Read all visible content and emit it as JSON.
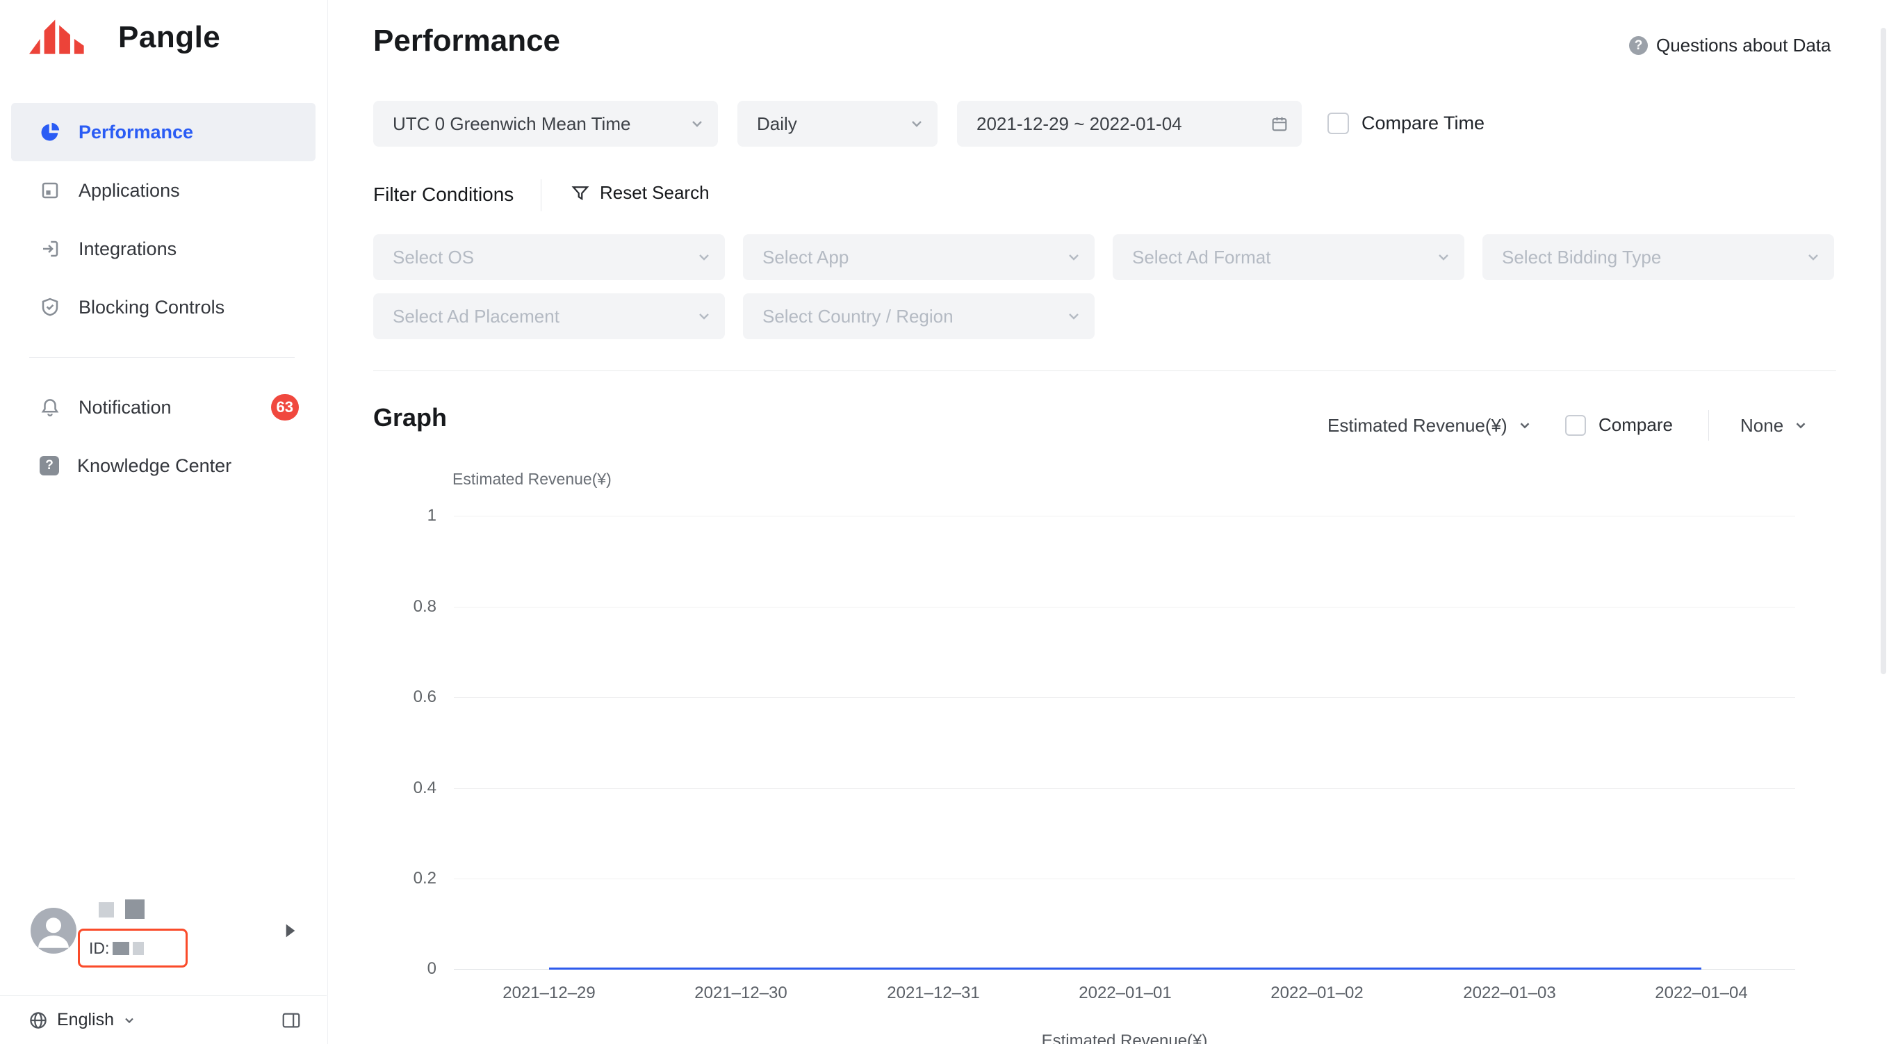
{
  "brand": {
    "name": "Pangle"
  },
  "colors": {
    "accent": "#2a5cf4",
    "badge": "#f0483e",
    "highlight_box": "#fa4b2a",
    "chart_line": "#2e5bec"
  },
  "icons": {
    "question_glyph": "?"
  },
  "sidebar": {
    "items": [
      {
        "label": "Performance",
        "active": true
      },
      {
        "label": "Applications",
        "active": false
      },
      {
        "label": "Integrations",
        "active": false
      },
      {
        "label": "Blocking Controls",
        "active": false
      },
      {
        "label": "Notification",
        "active": false,
        "badge": "63"
      },
      {
        "label": "Knowledge Center",
        "active": false
      }
    ],
    "user": {
      "id_label": "ID:"
    },
    "language": "English"
  },
  "header": {
    "title": "Performance",
    "help_label": "Questions about Data"
  },
  "filters": {
    "timezone": "UTC 0 Greenwich Mean Time",
    "granularity": "Daily",
    "date_range": "2021-12-29 ~ 2022-01-04",
    "compare_time_label": "Compare Time",
    "conditions_label": "Filter Conditions",
    "reset_label": "Reset Search",
    "placeholders": {
      "os": "Select OS",
      "app": "Select App",
      "ad_format": "Select Ad Format",
      "bidding_type": "Select Bidding Type",
      "ad_placement": "Select Ad Placement",
      "country": "Select Country / Region"
    }
  },
  "graph": {
    "section_title": "Graph",
    "metric": "Estimated Revenue(¥)",
    "compare_label": "Compare",
    "secondary_metric": "None"
  },
  "chart_data": {
    "type": "line",
    "title": "Estimated Revenue(¥)",
    "ylabel": "Estimated Revenue(¥)",
    "x": [
      "2021–12–29",
      "2021–12–30",
      "2021–12–31",
      "2022–01–01",
      "2022–01–02",
      "2022–01–03",
      "2022–01–04"
    ],
    "series": [
      {
        "name": "Estimated Revenue(¥)",
        "values": [
          0,
          0,
          0,
          0,
          0,
          0,
          0
        ]
      }
    ],
    "ylim": [
      0,
      1
    ],
    "yticks": [
      "0",
      "0.2",
      "0.4",
      "0.6",
      "0.8",
      "1"
    ],
    "grid": true,
    "legend_position": "bottom",
    "line_color": "#2e5bec"
  }
}
